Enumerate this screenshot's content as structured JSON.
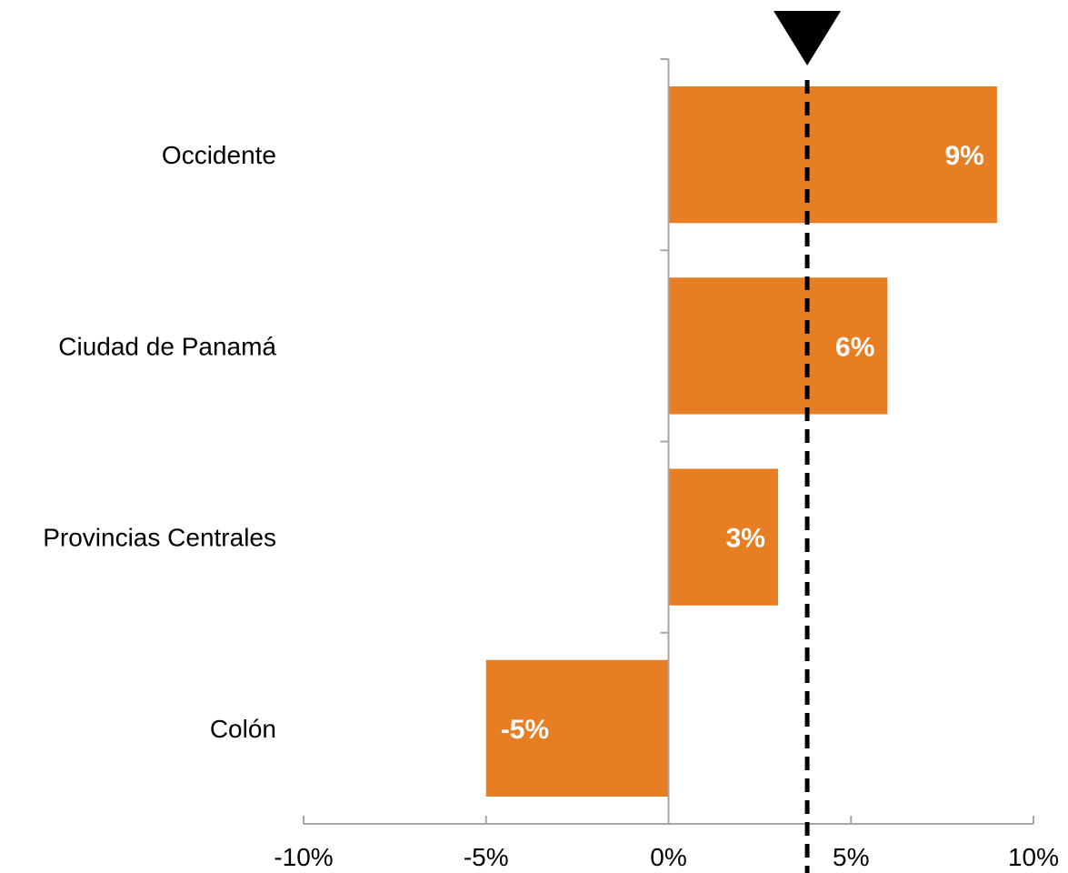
{
  "chart_data": {
    "type": "bar",
    "orientation": "horizontal",
    "categories": [
      "Occidente",
      "Ciudad de Panamá",
      "Provincias Centrales",
      "Colón"
    ],
    "values": [
      9,
      6,
      3,
      -5
    ],
    "data_labels": [
      "9%",
      "6%",
      "3%",
      "-5%"
    ],
    "xlim": [
      -10,
      10
    ],
    "xticks": [
      -10,
      -5,
      0,
      5,
      10
    ],
    "xtick_labels": [
      "-10%",
      "-5%",
      "0%",
      "5%",
      "10%"
    ],
    "reference_line": {
      "value": 3.8,
      "style": "dashed",
      "marker": "triangle-down"
    },
    "grid": false,
    "legend": "none",
    "colors": {
      "bar": "#E87E24",
      "axis": "#A6A6A6",
      "reference": "#000000"
    }
  }
}
